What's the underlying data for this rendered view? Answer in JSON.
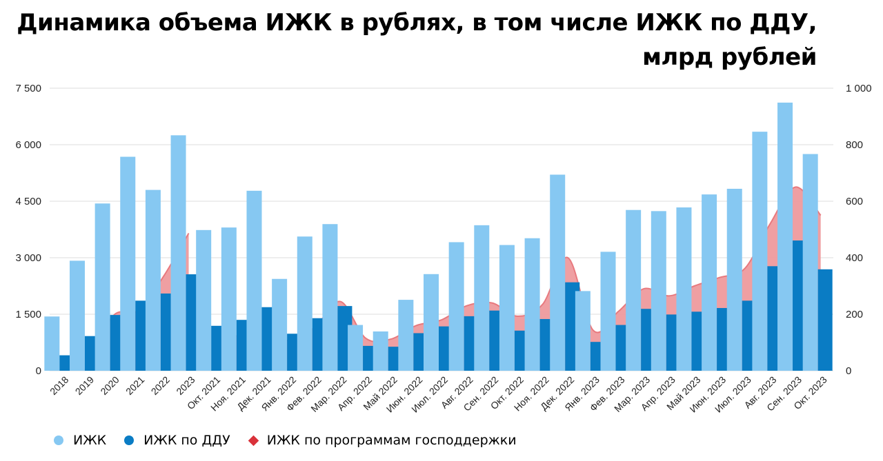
{
  "title_line1": "Динамика объема ИЖК в рублях, в том числе ИЖК по ДДУ,",
  "title_line2": "млрд рублей",
  "legend": {
    "izhk": "ИЖК",
    "izhk_ddu": "ИЖК по ДДУ",
    "izhk_gov": "ИЖК по программам господдержки"
  },
  "colors": {
    "izhk": "#86c8f2",
    "izhk_ddu": "#0a7cc4",
    "izhk_gov_fill": "#ee9a9d",
    "izhk_gov_line": "#e8797e",
    "gov_marker": "#d9323a",
    "grid": "#dedede",
    "axis_text": "#222222"
  },
  "chart_data": {
    "type": "bar",
    "title": "Динамика объема ИЖК в рублях, в том числе ИЖК по ДДУ, млрд рублей",
    "categories": [
      "2018",
      "2019",
      "2020",
      "2021",
      "2022",
      "2023",
      "Окт. 2021",
      "Ноя. 2021",
      "Дек. 2021",
      "Янв. 2022",
      "Фев. 2022",
      "Мар. 2022",
      "Апр. 2022",
      "Май 2022",
      "Июн. 2022",
      "Июл. 2022",
      "Авг. 2022",
      "Сен. 2022",
      "Окт. 2022",
      "Ноя. 2022",
      "Дек. 2022",
      "Янв. 2023",
      "Фев. 2023",
      "Мар. 2023",
      "Апр. 2023",
      "Май 2023",
      "Июн. 2023",
      "Июл. 2023",
      "Авг. 2023",
      "Сен. 2023",
      "Окт. 2023"
    ],
    "y_left": {
      "min": 0,
      "max": 7500,
      "ticks": [
        0,
        1500,
        3000,
        4500,
        6000,
        7500
      ],
      "tick_labels": [
        "0",
        "1 500",
        "3 000",
        "4 500",
        "6 000",
        "7 500"
      ]
    },
    "y_right": {
      "min": 0,
      "max": 1000,
      "ticks": [
        0,
        200,
        400,
        600,
        800,
        1000
      ],
      "tick_labels": [
        "0",
        "200",
        "400",
        "600",
        "800",
        "1 000"
      ]
    },
    "series": [
      {
        "name": "ИЖК",
        "axis": "left",
        "type": "bar",
        "values": [
          1440,
          2920,
          4440,
          5680,
          4800,
          6250,
          null,
          null,
          null,
          null,
          null,
          null,
          null,
          null,
          null,
          null,
          null,
          null,
          null,
          null,
          null,
          null,
          null,
          null,
          null,
          null,
          null,
          null,
          null,
          null,
          null
        ],
        "values_right": [
          null,
          null,
          null,
          null,
          null,
          null,
          498,
          507,
          637,
          325,
          475,
          519,
          162,
          139,
          251,
          342,
          455,
          515,
          445,
          469,
          694,
          282,
          421,
          569,
          565,
          578,
          624,
          644,
          846,
          949,
          767
        ]
      },
      {
        "name": "ИЖК по ДДУ",
        "axis": "left",
        "type": "bar",
        "values": [
          410,
          920,
          1480,
          1860,
          2050,
          2560,
          null,
          null,
          null,
          null,
          null,
          null,
          null,
          null,
          null,
          null,
          null,
          null,
          null,
          null,
          null,
          null,
          null,
          null,
          null,
          null,
          null,
          null,
          null,
          null,
          null
        ],
        "values_right": [
          null,
          null,
          null,
          null,
          null,
          null,
          159,
          180,
          225,
          131,
          186,
          229,
          88,
          85,
          133,
          157,
          193,
          213,
          142,
          183,
          313,
          102,
          162,
          219,
          199,
          209,
          222,
          248,
          370,
          461,
          359
        ]
      },
      {
        "name": "ИЖК по программам господдержки",
        "type": "area",
        "values_left": [
          20,
          50,
          1450,
          1600,
          2500,
          3650,
          null,
          null,
          null,
          null,
          null,
          null,
          null,
          null,
          null,
          null,
          null,
          null,
          null,
          null,
          null,
          null,
          null,
          null,
          null,
          null,
          null,
          null,
          null,
          null,
          null
        ],
        "values_right": [
          null,
          null,
          null,
          null,
          null,
          null,
          118,
          125,
          165,
          105,
          155,
          245,
          115,
          112,
          160,
          180,
          230,
          240,
          193,
          235,
          400,
          143,
          210,
          290,
          265,
          300,
          330,
          362,
          520,
          650,
          550
        ]
      }
    ],
    "legend_position": "bottom-left"
  }
}
